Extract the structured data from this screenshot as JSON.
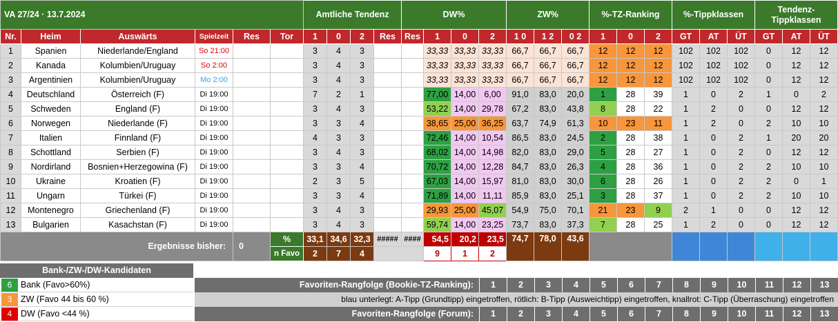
{
  "title": "VA 27/24 · 13.7.2024",
  "group_headers": {
    "amtliche_tendenz": "Amtliche Tendenz",
    "dw": "DW%",
    "zw": "ZW%",
    "tz_ranking": "%-TZ-Ranking",
    "tippklassen": "%-Tippklassen",
    "tendenz_tippklassen": "Tendenz-Tippklassen"
  },
  "columns": {
    "nr": "Nr.",
    "heim": "Heim",
    "auswaerts": "Auswärts",
    "spielzeit": "Spielzeit",
    "res": "Res",
    "tor": "Tor",
    "t1": "1",
    "t0": "0",
    "t2": "2",
    "tres": "Res",
    "dres": "Res",
    "d1": "1",
    "d0": "0",
    "d2": "2",
    "z10": "1 0",
    "z12": "1 2",
    "z02": "0 2",
    "r1": "1",
    "r0": "0",
    "r2": "2",
    "gt": "GT",
    "at": "AT",
    "ut": "ÜT",
    "tgt": "GT",
    "tat": "AT",
    "tut": "ÜT"
  },
  "rows": [
    {
      "nr": "1",
      "heim": "Spanien",
      "aus": "Niederlande/England",
      "zeit": "So 21:00",
      "tc": "red",
      "t": [
        "3",
        "4",
        "3"
      ],
      "dw": [
        "33,33",
        "33,33",
        "33,33"
      ],
      "dwc": [
        "pk",
        "pk",
        "pk"
      ],
      "dwi": true,
      "zw": [
        "66,7",
        "66,7",
        "66,7"
      ],
      "zwc": [
        "pk",
        "pk",
        "pk"
      ],
      "rk": [
        "12",
        "12",
        "12"
      ],
      "rkc": [
        "or",
        "or",
        "or"
      ],
      "tk": [
        "102",
        "102",
        "102"
      ],
      "tt": [
        "0",
        "12",
        "12"
      ]
    },
    {
      "nr": "2",
      "heim": "Kanada",
      "aus": "Kolumbien/Uruguay",
      "zeit": "So 2:00",
      "tc": "red",
      "t": [
        "3",
        "4",
        "3"
      ],
      "dw": [
        "33,33",
        "33,33",
        "33,33"
      ],
      "dwc": [
        "pk",
        "pk",
        "pk"
      ],
      "dwi": true,
      "zw": [
        "66,7",
        "66,7",
        "66,7"
      ],
      "zwc": [
        "pk",
        "pk",
        "pk"
      ],
      "rk": [
        "12",
        "12",
        "12"
      ],
      "rkc": [
        "or",
        "or",
        "or"
      ],
      "tk": [
        "102",
        "102",
        "102"
      ],
      "tt": [
        "0",
        "12",
        "12"
      ]
    },
    {
      "nr": "3",
      "heim": "Argentinien",
      "aus": "Kolumbien/Uruguay",
      "zeit": "Mo 2:00",
      "tc": "blue",
      "t": [
        "3",
        "4",
        "3"
      ],
      "dw": [
        "33,33",
        "33,33",
        "33,33"
      ],
      "dwc": [
        "pk",
        "pk",
        "pk"
      ],
      "dwi": true,
      "zw": [
        "66,7",
        "66,7",
        "66,7"
      ],
      "zwc": [
        "pk",
        "pk",
        "pk"
      ],
      "rk": [
        "12",
        "12",
        "12"
      ],
      "rkc": [
        "or",
        "or",
        "or"
      ],
      "tk": [
        "102",
        "102",
        "102"
      ],
      "tt": [
        "0",
        "12",
        "12"
      ]
    },
    {
      "nr": "4",
      "heim": "Deutschland",
      "aus": "Österreich (F)",
      "zeit": "Di 19:00",
      "tc": "",
      "t": [
        "7",
        "2",
        "1"
      ],
      "dw": [
        "77,00",
        "14,00",
        "6,00"
      ],
      "dwc": [
        "dg",
        "vi",
        "vi"
      ],
      "dwi": false,
      "zw": [
        "91,0",
        "83,0",
        "20,0"
      ],
      "zwc": [
        "gr",
        "gr",
        "gr"
      ],
      "rk": [
        "1",
        "28",
        "39"
      ],
      "rkc": [
        "dg",
        "",
        ""
      ],
      "tk": [
        "1",
        "0",
        "2"
      ],
      "tt": [
        "1",
        "0",
        "2"
      ]
    },
    {
      "nr": "5",
      "heim": "Schweden",
      "aus": "England (F)",
      "zeit": "Di 19:00",
      "tc": "",
      "t": [
        "3",
        "4",
        "3"
      ],
      "dw": [
        "53,22",
        "14,00",
        "29,78"
      ],
      "dwc": [
        "lg",
        "vi",
        "vi"
      ],
      "dwi": false,
      "zw": [
        "67,2",
        "83,0",
        "43,8"
      ],
      "zwc": [
        "gr",
        "gr",
        "gr"
      ],
      "rk": [
        "8",
        "28",
        "22"
      ],
      "rkc": [
        "lg",
        "",
        ""
      ],
      "tk": [
        "1",
        "2",
        "0"
      ],
      "tt": [
        "0",
        "12",
        "12"
      ]
    },
    {
      "nr": "6",
      "heim": "Norwegen",
      "aus": "Niederlande (F)",
      "zeit": "Di 19:00",
      "tc": "",
      "t": [
        "3",
        "3",
        "4"
      ],
      "dw": [
        "38,65",
        "25,00",
        "36,25"
      ],
      "dwc": [
        "or",
        "or",
        "or"
      ],
      "dwi": false,
      "zw": [
        "63,7",
        "74,9",
        "61,3"
      ],
      "zwc": [
        "gr",
        "gr",
        "gr"
      ],
      "rk": [
        "10",
        "23",
        "11"
      ],
      "rkc": [
        "or",
        "or",
        "or"
      ],
      "tk": [
        "1",
        "2",
        "0"
      ],
      "tt": [
        "2",
        "10",
        "10"
      ]
    },
    {
      "nr": "7",
      "heim": "Italien",
      "aus": "Finnland (F)",
      "zeit": "Di 19:00",
      "tc": "",
      "t": [
        "4",
        "3",
        "3"
      ],
      "dw": [
        "72,46",
        "14,00",
        "10,54"
      ],
      "dwc": [
        "dg",
        "vi",
        "vi"
      ],
      "dwi": false,
      "zw": [
        "86,5",
        "83,0",
        "24,5"
      ],
      "zwc": [
        "gr",
        "gr",
        "gr"
      ],
      "rk": [
        "2",
        "28",
        "38"
      ],
      "rkc": [
        "dg",
        "",
        ""
      ],
      "tk": [
        "1",
        "0",
        "2"
      ],
      "tt": [
        "1",
        "20",
        "20"
      ]
    },
    {
      "nr": "8",
      "heim": "Schottland",
      "aus": "Serbien (F)",
      "zeit": "Di 19:00",
      "tc": "",
      "t": [
        "3",
        "4",
        "3"
      ],
      "dw": [
        "68,02",
        "14,00",
        "14,98"
      ],
      "dwc": [
        "dg",
        "vi",
        "vi"
      ],
      "dwi": false,
      "zw": [
        "82,0",
        "83,0",
        "29,0"
      ],
      "zwc": [
        "gr",
        "gr",
        "gr"
      ],
      "rk": [
        "5",
        "28",
        "27"
      ],
      "rkc": [
        "dg",
        "",
        ""
      ],
      "tk": [
        "1",
        "0",
        "2"
      ],
      "tt": [
        "0",
        "12",
        "12"
      ]
    },
    {
      "nr": "9",
      "heim": "Nordirland",
      "aus": "Bosnien+Herzegowina (F)",
      "zeit": "Di 19:00",
      "tc": "",
      "t": [
        "3",
        "3",
        "4"
      ],
      "dw": [
        "70,72",
        "14,00",
        "12,28"
      ],
      "dwc": [
        "dg",
        "vi",
        "vi"
      ],
      "dwi": false,
      "zw": [
        "84,7",
        "83,0",
        "26,3"
      ],
      "zwc": [
        "gr",
        "gr",
        "gr"
      ],
      "rk": [
        "4",
        "28",
        "36"
      ],
      "rkc": [
        "dg",
        "",
        ""
      ],
      "tk": [
        "1",
        "0",
        "2"
      ],
      "tt": [
        "2",
        "10",
        "10"
      ]
    },
    {
      "nr": "10",
      "heim": "Ukraine",
      "aus": "Kroatien (F)",
      "zeit": "Di 19:00",
      "tc": "",
      "t": [
        "2",
        "3",
        "5"
      ],
      "dw": [
        "67,03",
        "14,00",
        "15,97"
      ],
      "dwc": [
        "dg",
        "vi",
        "vi"
      ],
      "dwi": false,
      "zw": [
        "81,0",
        "83,0",
        "30,0"
      ],
      "zwc": [
        "gr",
        "gr",
        "gr"
      ],
      "rk": [
        "6",
        "28",
        "26"
      ],
      "rkc": [
        "dg",
        "",
        ""
      ],
      "tk": [
        "1",
        "0",
        "2"
      ],
      "tt": [
        "2",
        "0",
        "1"
      ]
    },
    {
      "nr": "11",
      "heim": "Ungarn",
      "aus": "Türkei (F)",
      "zeit": "Di 19:00",
      "tc": "",
      "t": [
        "3",
        "3",
        "4"
      ],
      "dw": [
        "71,89",
        "14,00",
        "11,11"
      ],
      "dwc": [
        "dg",
        "vi",
        "vi"
      ],
      "dwi": false,
      "zw": [
        "85,9",
        "83,0",
        "25,1"
      ],
      "zwc": [
        "gr",
        "gr",
        "gr"
      ],
      "rk": [
        "3",
        "28",
        "37"
      ],
      "rkc": [
        "dg",
        "",
        ""
      ],
      "tk": [
        "1",
        "0",
        "2"
      ],
      "tt": [
        "2",
        "10",
        "10"
      ]
    },
    {
      "nr": "12",
      "heim": "Montenegro",
      "aus": "Griechenland (F)",
      "zeit": "Di 19:00",
      "tc": "",
      "t": [
        "3",
        "4",
        "3"
      ],
      "dw": [
        "29,93",
        "25,00",
        "45,07"
      ],
      "dwc": [
        "or",
        "or",
        "lg"
      ],
      "dwi": false,
      "zw": [
        "54,9",
        "75,0",
        "70,1"
      ],
      "zwc": [
        "gr",
        "gr",
        "gr"
      ],
      "rk": [
        "21",
        "23",
        "9"
      ],
      "rkc": [
        "or",
        "or",
        "lg"
      ],
      "tk": [
        "2",
        "1",
        "0"
      ],
      "tt": [
        "0",
        "12",
        "12"
      ]
    },
    {
      "nr": "13",
      "heim": "Bulgarien",
      "aus": "Kasachstan (F)",
      "zeit": "Di 19:00",
      "tc": "",
      "t": [
        "3",
        "4",
        "3"
      ],
      "dw": [
        "59,74",
        "14,00",
        "23,25"
      ],
      "dwc": [
        "lg",
        "vi",
        "vi"
      ],
      "dwi": false,
      "zw": [
        "73,7",
        "83,0",
        "37,3"
      ],
      "zwc": [
        "gr",
        "gr",
        "gr"
      ],
      "rk": [
        "7",
        "28",
        "25"
      ],
      "rkc": [
        "lg",
        "",
        ""
      ],
      "tk": [
        "1",
        "2",
        "0"
      ],
      "tt": [
        "0",
        "12",
        "12"
      ]
    }
  ],
  "summary": {
    "label": "Ergebnisse bisher:",
    "value": "0",
    "pct_label": "%",
    "pct": [
      "33,1",
      "34,6",
      "32,3"
    ],
    "hash1": "#####",
    "hash2": "####",
    "dw_pct": [
      "54,5",
      "20,2",
      "23,5"
    ],
    "zw_pct": [
      "74,7",
      "78,0",
      "43,6"
    ],
    "favo_label": "n Favo",
    "favo": [
      "2",
      "7",
      "4"
    ],
    "dw_favo": [
      "9",
      "1",
      "2"
    ]
  },
  "legend": {
    "title": "Bank-/ZW-/DW-Kandidaten",
    "items": [
      {
        "num": "6",
        "text": "Bank (Favo>60%)",
        "color": "#2ea043"
      },
      {
        "num": "3",
        "text": "ZW (Favo 44 bis 60 %)",
        "color": "#f7963b"
      },
      {
        "num": "4",
        "text": "DW (Favo <44 %)",
        "color": "#e00000"
      }
    ]
  },
  "ranking": {
    "bookie_label": "Favoriten-Rangfolge (Bookie-TZ-Ranking):",
    "forum_label": "Favoriten-Rangfolge (Forum):",
    "numbers": [
      "1",
      "2",
      "3",
      "4",
      "5",
      "6",
      "7",
      "8",
      "9",
      "10",
      "11",
      "12",
      "13"
    ],
    "note": "blau unterlegt: A-Tipp (Grundtipp) eingetroffen, rötlich: B-Tipp (Ausweichtipp) eingetroffen, knallrot: C-Tipp (Überraschung) eingetroffen"
  }
}
